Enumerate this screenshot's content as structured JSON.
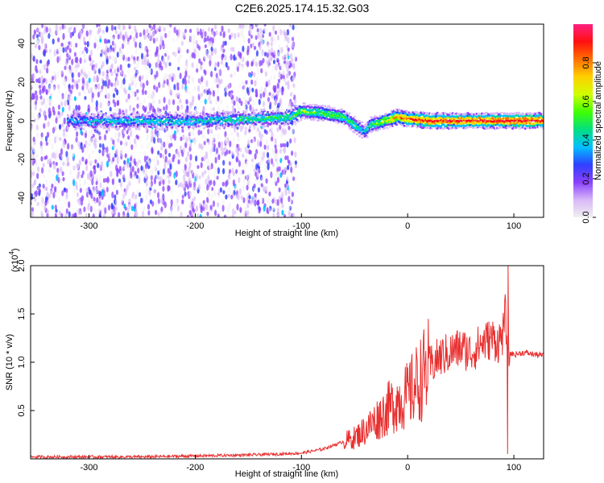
{
  "title": "C2E6.2025.174.15.32.G03",
  "colors": {
    "snr_line": "#e83030",
    "spectrogram_low": "#6a2cf0",
    "colorbar": [
      "#f0f0f0",
      "#d8b8f8",
      "#8a40ff",
      "#3040ff",
      "#00c0ff",
      "#00e080",
      "#40ff00",
      "#d0ff00",
      "#ffd000",
      "#ff7000",
      "#ff1010",
      "#ff2080"
    ]
  },
  "chart_data": [
    {
      "type": "heatmap",
      "title": "",
      "xlabel": "Height of straight line (km)",
      "ylabel": "Frequency (Hz)",
      "xlim": [
        -355,
        128
      ],
      "ylim": [
        -50,
        50
      ],
      "x_ticks": [
        "-300",
        "-200",
        "-100",
        "0",
        "100"
      ],
      "y_ticks": [
        "40",
        "20",
        "0",
        "-20",
        "-40"
      ],
      "x_tick_values": [
        -300,
        -200,
        -100,
        0,
        100
      ],
      "y_tick_values": [
        40,
        20,
        0,
        -20,
        -40
      ],
      "colorbar": {
        "label": "Normalized spectral amplitude",
        "ticks": [
          "0.0",
          "0.2",
          "0.4",
          "0.6",
          "0.8"
        ],
        "tick_values": [
          0.0,
          0.2,
          0.4,
          0.6,
          0.8
        ],
        "range": [
          0,
          1
        ]
      },
      "ridge": {
        "x": [
          -320,
          -300,
          -250,
          -200,
          -150,
          -110,
          -100,
          -80,
          -60,
          -50,
          -40,
          -35,
          -20,
          -10,
          0,
          20,
          50,
          90,
          128
        ],
        "frequency": [
          0,
          0,
          0,
          0,
          1,
          2,
          5,
          4,
          2,
          -2,
          -6,
          -2,
          0,
          2,
          1,
          0,
          0,
          0,
          0
        ],
        "amplitude": [
          0.35,
          0.4,
          0.45,
          0.45,
          0.5,
          0.55,
          0.6,
          0.6,
          0.55,
          0.5,
          0.45,
          0.5,
          0.7,
          0.8,
          0.9,
          0.95,
          0.95,
          0.95,
          0.95
        ]
      },
      "noise_region_x": [
        -355,
        -105
      ]
    },
    {
      "type": "line",
      "title": "",
      "xlabel": "Height of straight line (km)",
      "ylabel": "SNR (10 * v/v)",
      "multiplier_label": "(x10",
      "multiplier_exp": "4",
      "xlim": [
        -355,
        128
      ],
      "ylim": [
        0,
        2.0
      ],
      "x_ticks": [
        "-300",
        "-200",
        "-100",
        "0",
        "100"
      ],
      "y_ticks": [
        "2.0",
        "1.5",
        "1.0",
        "0.5"
      ],
      "x_tick_values": [
        -300,
        -200,
        -100,
        0,
        100
      ],
      "y_tick_values": [
        2.0,
        1.5,
        1.0,
        0.5
      ],
      "series": [
        {
          "x": [
            -355,
            -300,
            -250,
            -200,
            -150,
            -120,
            -100,
            -80,
            -60,
            -50,
            -40,
            -30,
            -20,
            -10,
            0,
            10,
            20,
            30,
            40,
            50,
            60,
            70,
            80,
            85,
            90,
            92,
            94,
            96,
            100,
            110,
            120,
            128
          ],
          "y": [
            0.02,
            0.02,
            0.02,
            0.03,
            0.04,
            0.05,
            0.06,
            0.1,
            0.18,
            0.22,
            0.3,
            0.4,
            0.5,
            0.6,
            0.65,
            0.8,
            0.95,
            1.05,
            1.1,
            1.15,
            1.1,
            1.2,
            1.25,
            1.2,
            1.3,
            1.5,
            1.2,
            1.1,
            1.08,
            1.1,
            1.08,
            1.07
          ]
        }
      ]
    }
  ]
}
